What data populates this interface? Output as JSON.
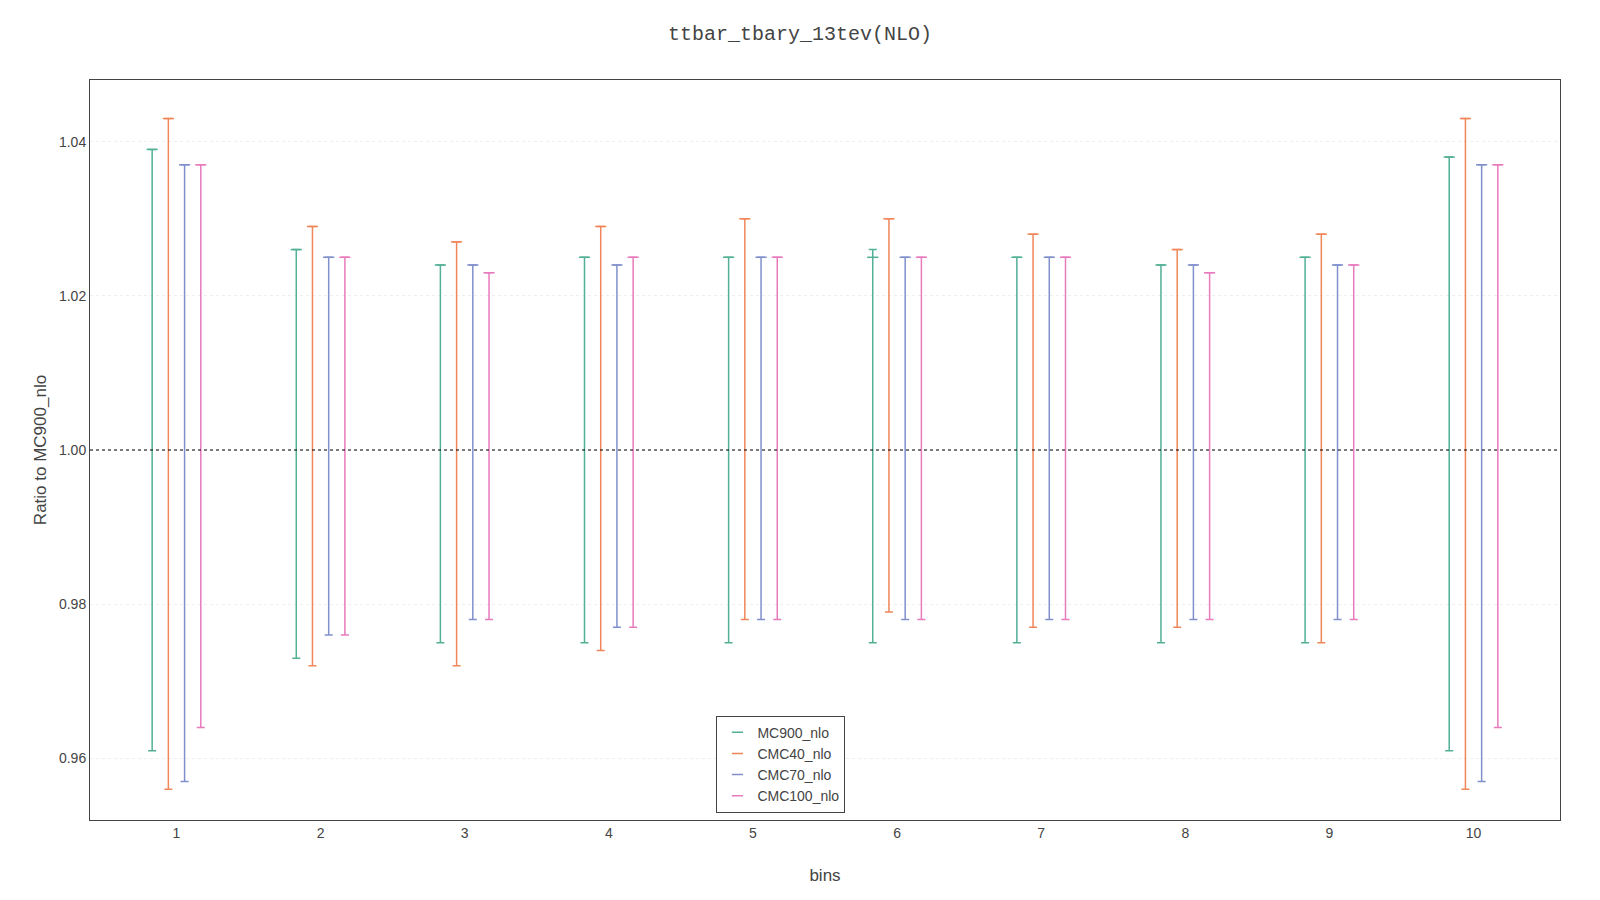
{
  "chart_data": {
    "type": "errorbar",
    "title": "ttbar_tbary_13tev(NLO)",
    "xlabel": "bins",
    "ylabel": "Ratio to MC900_nlo",
    "x": [
      1,
      2,
      3,
      4,
      5,
      6,
      7,
      8,
      9,
      10
    ],
    "xlim": [
      0.4,
      10.6
    ],
    "xticks": [
      1,
      2,
      3,
      4,
      5,
      6,
      7,
      8,
      9,
      10
    ],
    "ylim": [
      0.952,
      1.048
    ],
    "yticks": [
      0.96,
      0.98,
      {
        "value": 1.0,
        "label": "1.00"
      },
      1.02,
      1.04
    ],
    "reference_line": 1.0,
    "grid": "y",
    "legend": "lower center",
    "series": [
      {
        "name": "MC900_nlo",
        "color": "#52b096",
        "values": [
          1.039,
          1.026,
          1.024,
          1.025,
          1.025,
          1.025,
          1.025,
          1.024,
          1.025,
          1.038
        ],
        "lower": [
          0.961,
          0.973,
          0.975,
          0.975,
          0.975,
          0.975,
          0.975,
          0.975,
          0.975,
          0.961
        ],
        "upper": [
          1.039,
          1.026,
          1.024,
          1.025,
          1.025,
          1.026,
          1.025,
          1.024,
          1.025,
          1.038
        ]
      },
      {
        "name": "CMC40_nlo",
        "color": "#f0875a",
        "values": [
          1.043,
          1.029,
          1.027,
          1.029,
          1.03,
          1.03,
          1.028,
          1.026,
          1.028,
          1.043
        ],
        "lower": [
          0.956,
          0.972,
          0.972,
          0.974,
          0.978,
          0.979,
          0.977,
          0.977,
          0.975,
          0.956
        ],
        "upper": [
          1.043,
          1.029,
          1.027,
          1.029,
          1.03,
          1.03,
          1.028,
          1.026,
          1.028,
          1.043
        ]
      },
      {
        "name": "CMC70_nlo",
        "color": "#8090cc",
        "values": [
          1.037,
          1.025,
          1.024,
          1.024,
          1.025,
          1.025,
          1.025,
          1.024,
          1.024,
          1.037
        ],
        "lower": [
          0.957,
          0.976,
          0.978,
          0.977,
          0.978,
          0.978,
          0.978,
          0.978,
          0.978,
          0.957
        ],
        "upper": [
          1.037,
          1.025,
          1.024,
          1.024,
          1.025,
          1.025,
          1.025,
          1.024,
          1.024,
          1.037
        ]
      },
      {
        "name": "CMC100_nlo",
        "color": "#e87bbd",
        "values": [
          1.037,
          1.025,
          1.023,
          1.025,
          1.025,
          1.025,
          1.025,
          1.023,
          1.024,
          1.037
        ],
        "lower": [
          0.964,
          0.976,
          0.978,
          0.977,
          0.978,
          0.978,
          0.978,
          0.978,
          0.978,
          0.964
        ],
        "upper": [
          1.037,
          1.025,
          1.023,
          1.025,
          1.025,
          1.025,
          1.025,
          1.023,
          1.024,
          1.037
        ]
      }
    ]
  }
}
